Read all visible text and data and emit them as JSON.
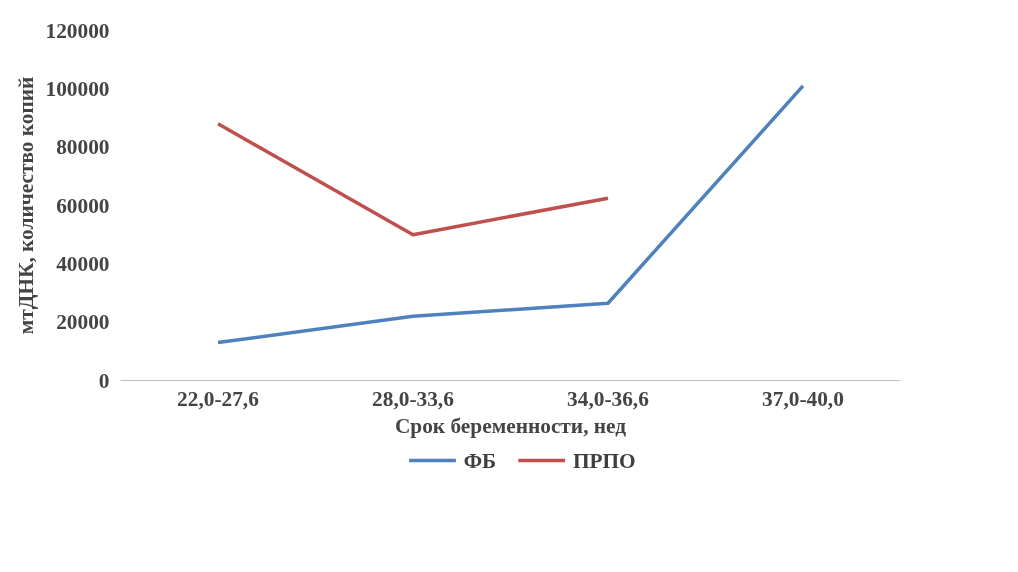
{
  "chart_data": {
    "type": "line",
    "xlabel": "Срок беременности, нед",
    "ylabel": "мтДНК, количество копий",
    "categories": [
      "22,0-27,6",
      "28,0-33,6",
      "34,0-36,6",
      "37,0-40,0"
    ],
    "series": [
      {
        "name": "ФБ",
        "color": "#4f81bd",
        "values": [
          13000,
          22000,
          26500,
          101000
        ]
      },
      {
        "name": "ПРПО",
        "color": "#c0504d",
        "values": [
          88000,
          50000,
          62500,
          null
        ]
      }
    ],
    "ylim": [
      0,
      120000
    ],
    "yticks": [
      0,
      20000,
      40000,
      60000,
      80000,
      100000,
      120000
    ],
    "grid": false,
    "legend": "bottom",
    "marker": "none",
    "line_style": "solid"
  }
}
